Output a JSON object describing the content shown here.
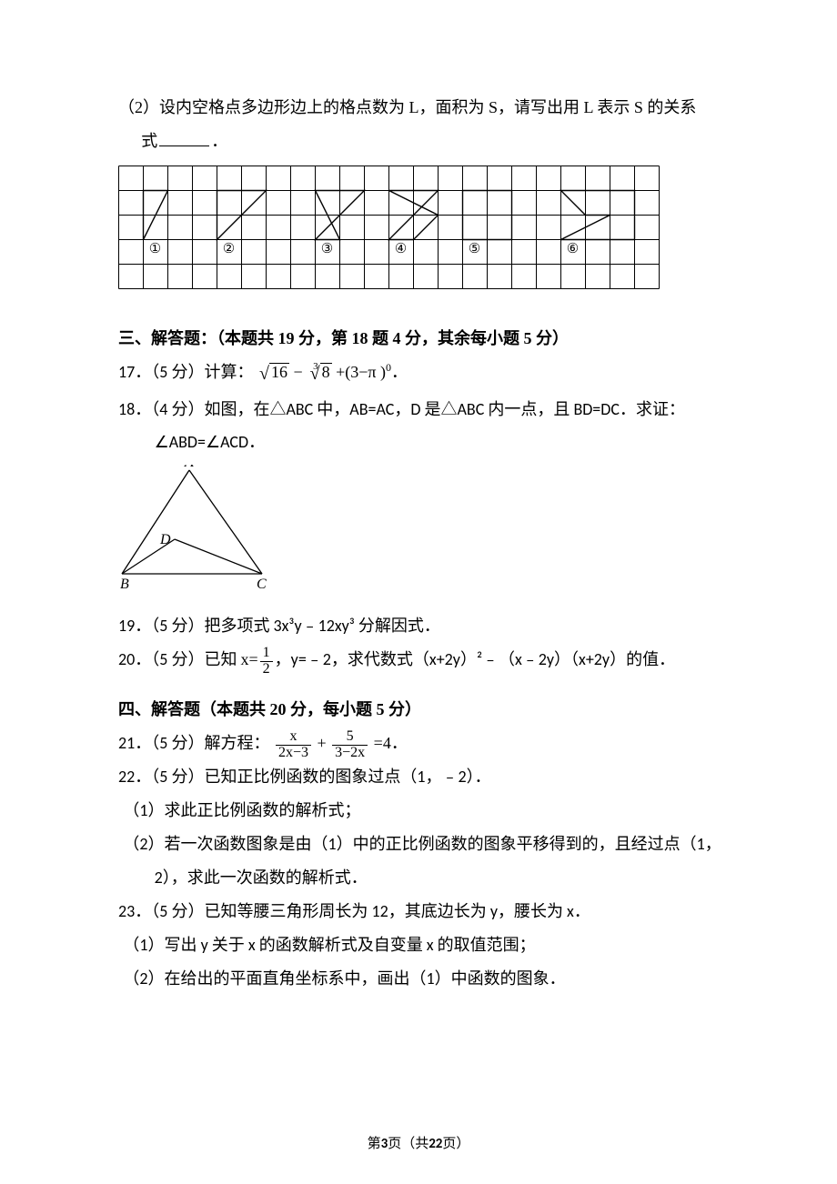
{
  "q2": {
    "prefix": "（2）设内空格点多边形边上的格点数为 L，面积为 S，请写出用 L 表示 S 的关系",
    "continuation_indent": "式",
    "period": "．"
  },
  "grid": {
    "cols": 22,
    "rows": 5,
    "cell": 27,
    "stroke": "#000000",
    "bg": "#ffffff",
    "labels": [
      "①",
      "②",
      "③",
      "④",
      "⑤",
      "⑥"
    ],
    "label_y_row": 3.55,
    "label_xs_cols": [
      1.5,
      4.5,
      8.5,
      11.5,
      14.5,
      18.5
    ],
    "shapes": [
      {
        "pts": [
          [
            1,
            1
          ],
          [
            2,
            1
          ],
          [
            1,
            3
          ]
        ]
      },
      {
        "pts": [
          [
            4,
            1
          ],
          [
            6,
            1
          ],
          [
            4,
            3
          ]
        ]
      },
      {
        "pts": [
          [
            8,
            1
          ],
          [
            10,
            1
          ],
          [
            8,
            3
          ],
          [
            9,
            3
          ]
        ]
      },
      {
        "pts": [
          [
            11,
            1
          ],
          [
            13,
            1
          ],
          [
            11,
            3
          ],
          [
            12,
            3
          ],
          [
            13,
            2
          ]
        ]
      },
      {
        "pts": [
          [
            14,
            1
          ],
          [
            16,
            1
          ],
          [
            16,
            3
          ],
          [
            14,
            3
          ]
        ]
      },
      {
        "pts": [
          [
            18,
            1
          ],
          [
            21,
            1
          ],
          [
            21,
            3
          ],
          [
            18,
            3
          ],
          [
            20,
            2
          ],
          [
            19,
            2
          ]
        ]
      }
    ]
  },
  "section3": {
    "title": "三、解答题：（本题共 19 分，第 18 题 4 分，其余每小题 5 分）"
  },
  "q17": {
    "text_a": "17．（5 分）计算：",
    "sqrt_a": "16",
    "root_b_idx": "3",
    "root_b_rad": "8",
    "tail": "+(3−π )",
    "exp": "0",
    "end": "．"
  },
  "q18": {
    "line1": "18．（4 分）如图，在△ABC 中，AB=AC，D 是△ABC 内一点，且 BD=DC．求证：",
    "line2": "∠ABD=∠ACD．",
    "triangle": {
      "A": [
        78,
        6
      ],
      "B": [
        4,
        120
      ],
      "C": [
        158,
        120
      ],
      "D": [
        62,
        82
      ],
      "labels": {
        "A": "A",
        "B": "B",
        "C": "C",
        "D": "D"
      },
      "label_font": "italic 16px 'Times New Roman', serif",
      "stroke": "#000000"
    }
  },
  "q19": {
    "text": "19．（5 分）把多项式 3x³y﹣12xy³ 分解因式．"
  },
  "q20": {
    "lead": "20．（5 分）已知 ",
    "x_eq": "x=",
    "frac_num": "1",
    "frac_den": "2",
    "mid": "，y=﹣2，求代数式（x+2y）²﹣（x﹣2y）（x+2y）的值．"
  },
  "section4": {
    "title": "四、解答题（本题共 20 分，每小题 5 分）"
  },
  "q21": {
    "lead": "21．（5 分）解方程：",
    "f1_num": "x",
    "f1_den": "2x−3",
    "plus": "+",
    "f2_num": "5",
    "f2_den": "3−2x",
    "eq": "=4",
    "end": "．"
  },
  "q22": {
    "l1": "22．（5 分）已知正比例函数的图象过点（1，﹣2）．",
    "s1": "（1）求此正比例函数的解析式；",
    "s2a": "（2）若一次函数图象是由（1）中的正比例函数的图象平移得到的，且经过点（1，",
    "s2b": "2），求此一次函数的解析式．"
  },
  "q23": {
    "l1": "23．（5 分）已知等腰三角形周长为 12，其底边长为 y，腰长为 x．",
    "s1": "（1）写出 y 关于 x 的函数解析式及自变量 x 的取值范围；",
    "s2": "（2）在给出的平面直角坐标系中，画出（1）中函数的图象．"
  },
  "footer": {
    "pre": "第",
    "page": "3",
    "mid": "页（共",
    "total": "22",
    "post": "页）"
  }
}
